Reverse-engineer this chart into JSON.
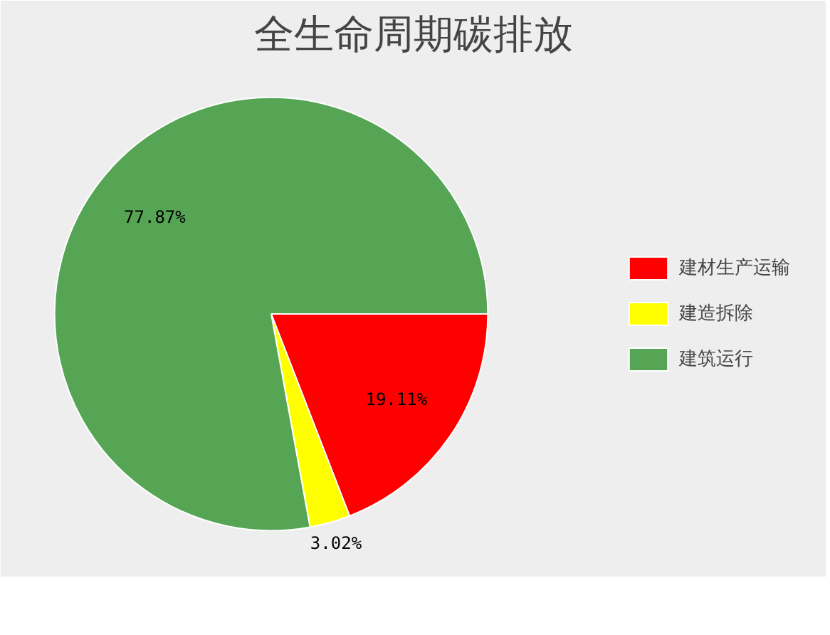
{
  "chart_data": {
    "type": "pie",
    "title": "全生命周期碳排放",
    "categories": [
      "建材生产运输",
      "建造拆除",
      "建筑运行"
    ],
    "values": [
      19.11,
      3.02,
      77.87
    ],
    "colors": [
      "#ff0000",
      "#ffff00",
      "#55a555"
    ],
    "value_labels": [
      "19.11%",
      "3.02%",
      "77.87%"
    ],
    "legend": "right"
  }
}
